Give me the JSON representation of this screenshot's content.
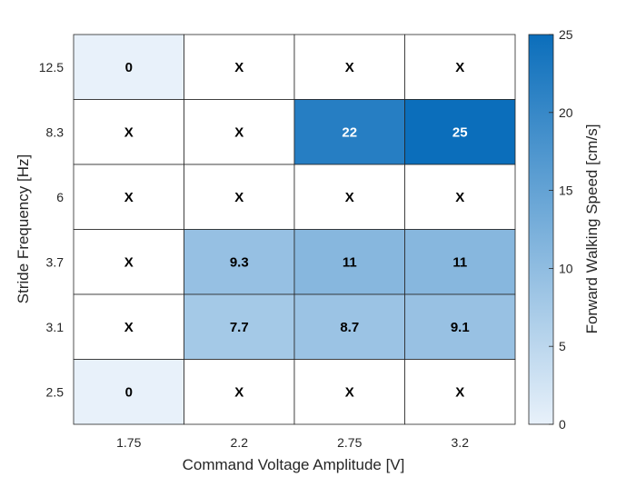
{
  "chart_data": {
    "type": "heatmap",
    "title": "",
    "xlabel": "Command Voltage Amplitude [V]",
    "ylabel": "Stride Frequency [Hz]",
    "x_categories": [
      "1.75",
      "2.2",
      "2.75",
      "3.2"
    ],
    "y_categories": [
      "12.5",
      "8.3",
      "6",
      "3.7",
      "3.1",
      "2.5"
    ],
    "cells": [
      [
        "0",
        "X",
        "X",
        "X"
      ],
      [
        "X",
        "X",
        "22",
        "25"
      ],
      [
        "X",
        "X",
        "X",
        "X"
      ],
      [
        "X",
        "9.3",
        "11",
        "11"
      ],
      [
        "X",
        "7.7",
        "8.7",
        "9.1"
      ],
      [
        "0",
        "X",
        "X",
        "X"
      ]
    ],
    "missing_marker": "X",
    "colorbar": {
      "label": "Forward Walking Speed [cm/s]",
      "range": [
        0,
        25
      ],
      "ticks": [
        "0",
        "5",
        "10",
        "15",
        "20",
        "25"
      ],
      "color_low": "#e8f1fa",
      "color_high": "#0b6ebb"
    },
    "grid": true
  }
}
